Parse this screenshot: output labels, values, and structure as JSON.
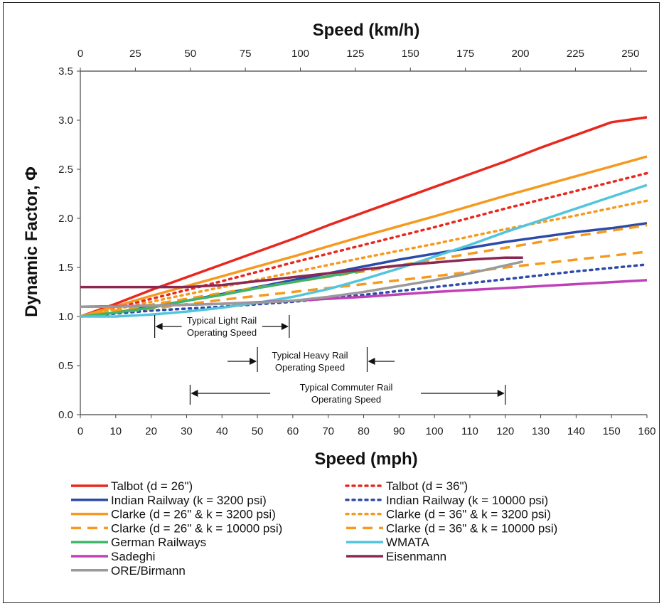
{
  "chart_data": {
    "type": "line",
    "title": "",
    "xlabel": "Speed (mph)",
    "x2label": "Speed (km/h)",
    "ylabel": "Dynamic Factor, Φ",
    "xlim": [
      0,
      160
    ],
    "ylim": [
      0,
      3.5
    ],
    "x2lim": [
      0,
      257.5
    ],
    "xticks": [
      "0",
      "10",
      "20",
      "30",
      "40",
      "50",
      "60",
      "70",
      "80",
      "90",
      "100",
      "110",
      "120",
      "130",
      "140",
      "150",
      "160"
    ],
    "x2ticks": [
      "0",
      "25",
      "50",
      "75",
      "100",
      "125",
      "150",
      "175",
      "200",
      "225",
      "250"
    ],
    "yticks": [
      "0.0",
      "0.5",
      "1.0",
      "1.5",
      "2.0",
      "2.5",
      "3.0",
      "3.5"
    ],
    "grid": false,
    "legend_position": "bottom",
    "series": [
      {
        "name": "Talbot (d = 26\")",
        "color": "#e8281e",
        "dash": "solid",
        "x": [
          0,
          10,
          20,
          30,
          40,
          50,
          60,
          70,
          80,
          90,
          100,
          110,
          120,
          130,
          140,
          150,
          160
        ],
        "y": [
          1.0,
          1.13,
          1.27,
          1.4,
          1.53,
          1.66,
          1.79,
          1.93,
          2.06,
          2.19,
          2.32,
          2.45,
          2.58,
          2.72,
          2.85,
          2.98,
          3.03
        ]
      },
      {
        "name": "Talbot (d = 36\")",
        "color": "#e8281e",
        "dash": "dot",
        "x": [
          0,
          20,
          40,
          60,
          80,
          100,
          120,
          140,
          160
        ],
        "y": [
          1.0,
          1.18,
          1.36,
          1.55,
          1.73,
          1.91,
          2.1,
          2.28,
          2.46
        ]
      },
      {
        "name": "Indian Railway (k = 3200 psi)",
        "color": "#2c4aa8",
        "dash": "solid",
        "x": [
          0,
          10,
          20,
          30,
          40,
          50,
          60,
          70,
          80,
          90,
          100,
          110,
          120,
          130,
          140,
          150,
          160
        ],
        "y": [
          1.0,
          1.04,
          1.1,
          1.16,
          1.23,
          1.3,
          1.37,
          1.44,
          1.51,
          1.58,
          1.64,
          1.7,
          1.76,
          1.81,
          1.86,
          1.9,
          1.95
        ]
      },
      {
        "name": "Indian Railway (k = 10000 psi)",
        "color": "#2c4aa8",
        "dash": "dot",
        "x": [
          0,
          20,
          40,
          60,
          80,
          100,
          120,
          140,
          160
        ],
        "y": [
          1.0,
          1.06,
          1.1,
          1.15,
          1.22,
          1.3,
          1.38,
          1.46,
          1.53
        ]
      },
      {
        "name": "Clarke (d = 26\" & k = 3200 psi)",
        "color": "#f59a1e",
        "dash": "solid",
        "x": [
          0,
          20,
          40,
          60,
          80,
          100,
          120,
          140,
          160
        ],
        "y": [
          1.0,
          1.21,
          1.41,
          1.61,
          1.82,
          2.02,
          2.23,
          2.43,
          2.63
        ]
      },
      {
        "name": "Clarke (d = 36\" & k = 3200 psi)",
        "color": "#f59a1e",
        "dash": "dot",
        "x": [
          0,
          20,
          40,
          60,
          80,
          100,
          120,
          140,
          160
        ],
        "y": [
          1.0,
          1.15,
          1.3,
          1.45,
          1.6,
          1.74,
          1.89,
          2.03,
          2.18
        ]
      },
      {
        "name": "Clarke (d = 26\" & k = 10000 psi)",
        "color": "#f59a1e",
        "dash": "dash",
        "x": [
          0,
          20,
          40,
          60,
          80,
          100,
          120,
          140,
          160
        ],
        "y": [
          1.0,
          1.12,
          1.24,
          1.35,
          1.46,
          1.58,
          1.7,
          1.82,
          1.93
        ]
      },
      {
        "name": "Clarke (d = 36\" & k = 10000 psi)",
        "color": "#f59a1e",
        "dash": "dash",
        "x": [
          0,
          20,
          40,
          60,
          80,
          100,
          120,
          140,
          160
        ],
        "y": [
          1.0,
          1.08,
          1.17,
          1.25,
          1.33,
          1.41,
          1.5,
          1.58,
          1.66
        ]
      },
      {
        "name": "German Railways",
        "color": "#3db56a",
        "dash": "solid",
        "x": [
          0,
          10,
          20,
          30,
          40,
          50,
          60,
          70,
          80
        ],
        "y": [
          1.0,
          1.04,
          1.09,
          1.16,
          1.22,
          1.29,
          1.35,
          1.41,
          1.47
        ]
      },
      {
        "name": "WMATA",
        "color": "#52c5dc",
        "dash": "solid",
        "x": [
          0,
          10,
          20,
          30,
          40,
          50,
          60,
          70,
          80,
          90,
          100,
          110,
          120,
          130,
          140,
          150,
          160
        ],
        "y": [
          1.0,
          1.0,
          1.02,
          1.05,
          1.09,
          1.14,
          1.2,
          1.28,
          1.38,
          1.49,
          1.61,
          1.73,
          1.86,
          1.98,
          2.1,
          2.22,
          2.34
        ]
      },
      {
        "name": "Sadeghi",
        "color": "#c040b8",
        "dash": "solid",
        "x": [
          0,
          20,
          40,
          60,
          80,
          100,
          120,
          140,
          160
        ],
        "y": [
          1.1,
          1.11,
          1.13,
          1.16,
          1.2,
          1.25,
          1.29,
          1.33,
          1.37
        ]
      },
      {
        "name": "Eisenmann",
        "color": "#8b2752",
        "dash": "solid",
        "x": [
          0,
          10,
          20,
          30,
          40,
          50,
          60,
          70,
          80,
          90,
          100,
          110,
          120,
          125
        ],
        "y": [
          1.3,
          1.3,
          1.3,
          1.3,
          1.32,
          1.36,
          1.4,
          1.44,
          1.48,
          1.52,
          1.55,
          1.58,
          1.6,
          1.6
        ]
      },
      {
        "name": "ORE/Birmann",
        "color": "#9a9a9a",
        "dash": "solid",
        "x": [
          0,
          10,
          20,
          30,
          40,
          50,
          60,
          70,
          80,
          90,
          100,
          110,
          120,
          125
        ],
        "y": [
          1.1,
          1.1,
          1.11,
          1.12,
          1.13,
          1.14,
          1.16,
          1.2,
          1.25,
          1.31,
          1.37,
          1.44,
          1.52,
          1.56
        ]
      }
    ],
    "annotations": [
      {
        "text": [
          "Typical Light Rail",
          "Operating Speed"
        ],
        "range_mph": [
          21,
          59
        ]
      },
      {
        "text": [
          "Typical Heavy Rail",
          "Operating Speed"
        ],
        "range_mph": [
          50,
          81
        ]
      },
      {
        "text": [
          "Typical Commuter Rail",
          "Operating Speed"
        ],
        "range_mph": [
          31,
          120
        ]
      }
    ]
  }
}
